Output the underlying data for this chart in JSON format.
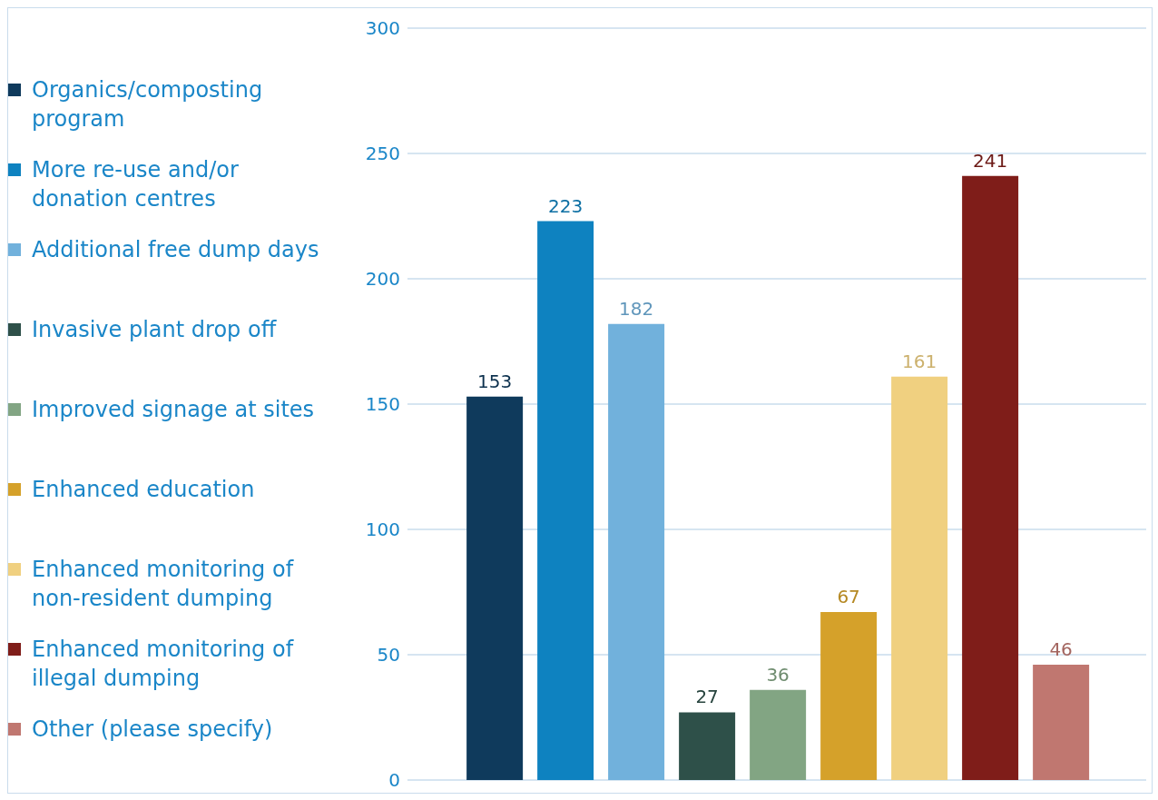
{
  "chart_data": {
    "type": "bar",
    "categories": [
      null
    ],
    "series": [
      {
        "name": "Organics/composting program",
        "color": "#0f3a5c",
        "values": [
          153
        ]
      },
      {
        "name": "More re-use and/or donation centres",
        "color": "#0e82c0",
        "values": [
          223
        ]
      },
      {
        "name": "Additional free dump days",
        "color": "#71b1dc",
        "values": [
          182
        ]
      },
      {
        "name": "Invasive plant drop off",
        "color": "#2e5049",
        "values": [
          27
        ]
      },
      {
        "name": "Improved signage at sites",
        "color": "#82a583",
        "values": [
          36
        ]
      },
      {
        "name": "Enhanced education",
        "color": "#d5a12a",
        "values": [
          67
        ]
      },
      {
        "name": "Enhanced monitoring of non-resident dumping",
        "color": "#f0d080",
        "values": [
          161
        ]
      },
      {
        "name": "Enhanced monitoring of illegal dumping",
        "color": "#7f1d19",
        "values": [
          241
        ]
      },
      {
        "name": "Other (please specify)",
        "color": "#c07770",
        "values": [
          46
        ]
      }
    ],
    "ylim": [
      0,
      300
    ],
    "yticks": [
      0,
      50,
      100,
      150,
      200,
      250,
      300
    ],
    "grid": "y",
    "legend": "left",
    "tick_labels": "y",
    "data_labels": true
  }
}
